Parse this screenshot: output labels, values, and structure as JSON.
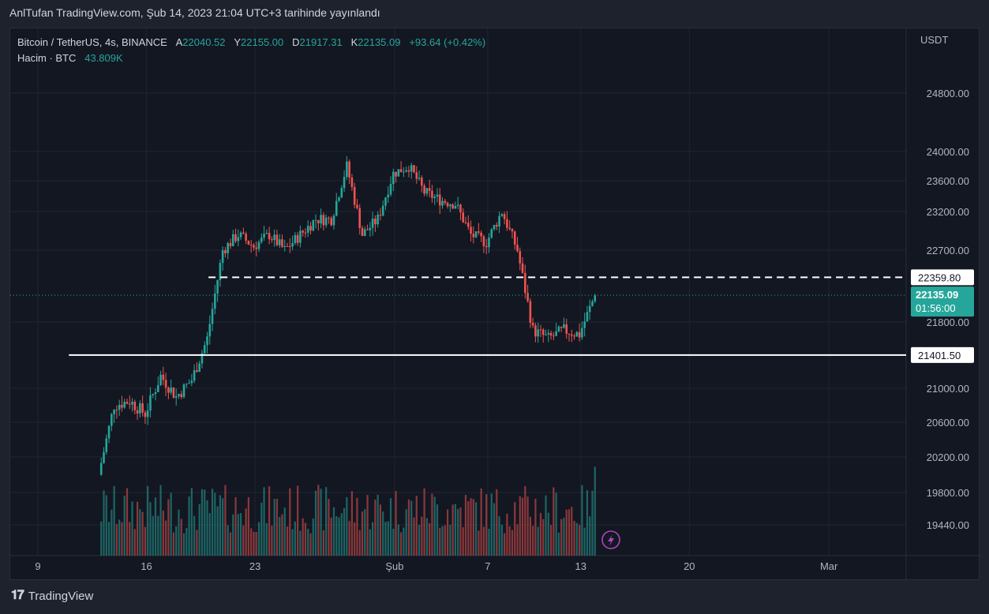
{
  "header": {
    "title": "AnlTufan TradingView.com, Şub 14, 2023 21:04 UTC+3 tarihinde yayınlandı"
  },
  "legend": {
    "symbol": "Bitcoin / TetherUS, 4s, BINANCE",
    "open_label": "A",
    "open": "22040.52",
    "high_label": "Y",
    "high": "22155.00",
    "low_label": "D",
    "low": "21917.31",
    "close_label": "K",
    "close": "22135.09",
    "change": "+93.64 (+0.42%)",
    "volume_label": "Hacim · BTC",
    "volume": "43.809K"
  },
  "footer": {
    "brand": "TradingView"
  },
  "colors": {
    "up": "#26a69a",
    "down": "#ef5350",
    "background": "#131722",
    "level": "#ffffff"
  },
  "chart_data": {
    "type": "candlestick",
    "currency": "USDT",
    "y_ticks": [
      "24800.00",
      "24000.00",
      "23600.00",
      "23200.00",
      "22700.00",
      "21800.00",
      "21000.00",
      "20600.00",
      "20200.00",
      "19800.00",
      "19440.00"
    ],
    "x_ticks": [
      "9",
      "16",
      "23",
      "Şub",
      "7",
      "13",
      "20",
      "Mar"
    ],
    "price_tags": [
      {
        "label": "22359.80",
        "kind": "resistance"
      },
      {
        "label": "22135.09",
        "sub": "01:56:00",
        "kind": "last"
      },
      {
        "label": "21401.50",
        "kind": "support"
      }
    ],
    "levels": [
      {
        "value": 22359.8,
        "style": "dashed",
        "from": "2023-01-20"
      },
      {
        "value": 21401.5,
        "style": "solid",
        "from": "2023-01-11"
      }
    ],
    "last_price": 22135.09,
    "price_path": [
      [
        "2023-01-13",
        20000
      ],
      [
        "2023-01-14",
        20800
      ],
      [
        "2023-01-15",
        20850
      ],
      [
        "2023-01-16",
        20700
      ],
      [
        "2023-01-17",
        21150
      ],
      [
        "2023-01-18",
        20900
      ],
      [
        "2023-01-19",
        21100
      ],
      [
        "2023-01-20",
        21600
      ],
      [
        "2023-01-21",
        22700
      ],
      [
        "2023-01-22",
        22900
      ],
      [
        "2023-01-23",
        22750
      ],
      [
        "2023-01-24",
        22900
      ],
      [
        "2023-01-25",
        22700
      ],
      [
        "2023-01-26",
        22900
      ],
      [
        "2023-01-27",
        23100
      ],
      [
        "2023-01-28",
        23100
      ],
      [
        "2023-01-29",
        23800
      ],
      [
        "2023-01-30",
        22900
      ],
      [
        "2023-01-31",
        23100
      ],
      [
        "2023-02-01",
        23700
      ],
      [
        "2023-02-02",
        23800
      ],
      [
        "2023-02-03",
        23450
      ],
      [
        "2023-02-04",
        23350
      ],
      [
        "2023-02-05",
        23300
      ],
      [
        "2023-02-06",
        22900
      ],
      [
        "2023-02-07",
        22800
      ],
      [
        "2023-02-08",
        23200
      ],
      [
        "2023-02-09",
        22700
      ],
      [
        "2023-02-10",
        21700
      ],
      [
        "2023-02-11",
        21600
      ],
      [
        "2023-02-12",
        21700
      ],
      [
        "2023-02-13",
        21650
      ],
      [
        "2023-02-14",
        22135
      ]
    ]
  }
}
